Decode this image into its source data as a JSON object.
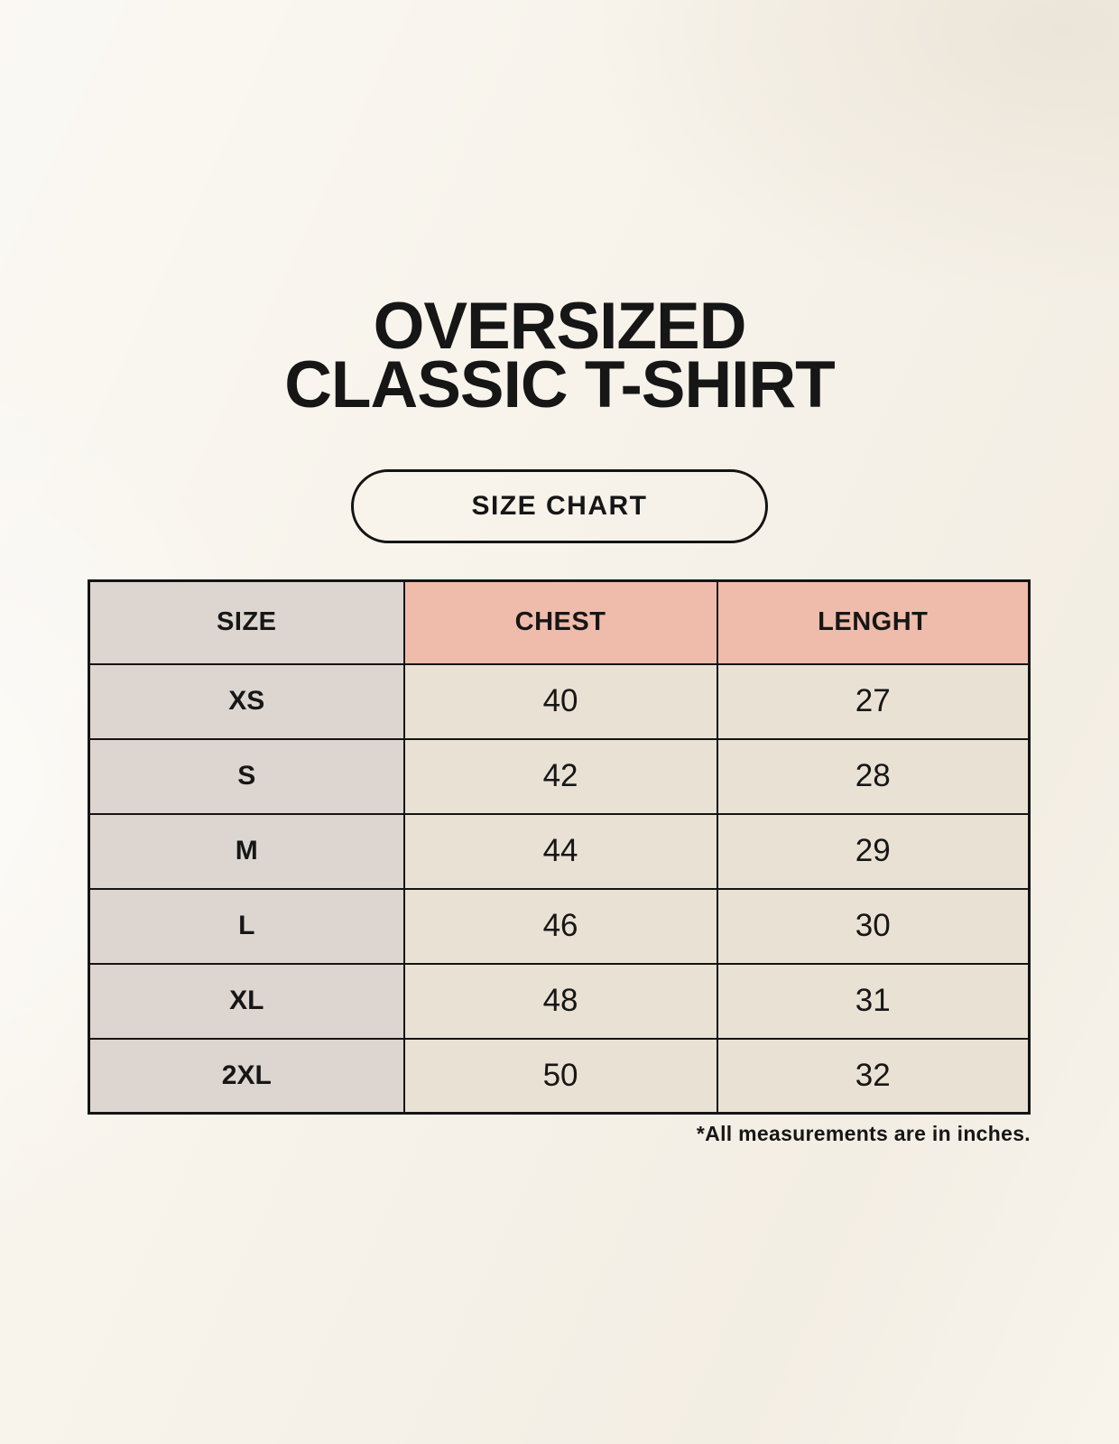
{
  "page": {
    "title_line1": "OVERSIZED",
    "title_line2": "CLASSIC T-SHIRT",
    "badge_label": "SIZE CHART",
    "footnote": "*All measurements are in inches."
  },
  "chart_data": {
    "type": "table",
    "title": "OVERSIZED CLASSIC T-SHIRT — SIZE CHART",
    "columns": [
      "SIZE",
      "CHEST",
      "LENGHT"
    ],
    "rows": [
      [
        "XS",
        "40",
        "27"
      ],
      [
        "S",
        "42",
        "28"
      ],
      [
        "M",
        "44",
        "29"
      ],
      [
        "L",
        "46",
        "30"
      ],
      [
        "XL",
        "48",
        "31"
      ],
      [
        "2XL",
        "50",
        "32"
      ]
    ],
    "units": "inches",
    "layout": {
      "header_fill": "first column gray, measurement columns salmon",
      "grid": "on"
    }
  },
  "colors": {
    "page_bg": "#f8f4ec",
    "header_accent": "#efbcab",
    "size_column_gray": "#dcd5d0",
    "cell_cream": "#e8e1d4",
    "line": "#141414",
    "ink": "#161616"
  }
}
